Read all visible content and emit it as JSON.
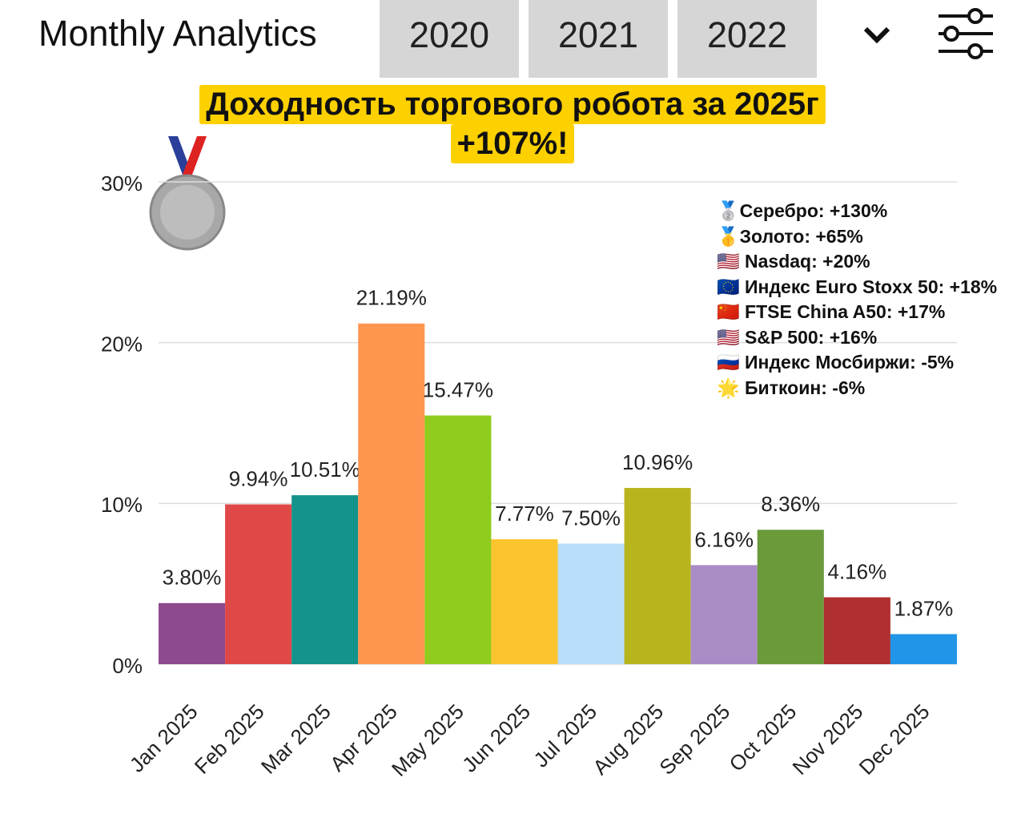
{
  "header": {
    "title": "Monthly Analytics",
    "years": [
      "2020",
      "2021",
      "2022"
    ]
  },
  "chart_data": {
    "type": "bar",
    "title": "Доходность торгового робота за 2025г",
    "subtitle": "+107%!",
    "categories": [
      "Jan 2025",
      "Feb 2025",
      "Mar 2025",
      "Apr 2025",
      "May 2025",
      "Jun 2025",
      "Jul 2025",
      "Aug 2025",
      "Sep 2025",
      "Oct 2025",
      "Nov 2025",
      "Dec 2025"
    ],
    "values": [
      3.8,
      9.94,
      10.51,
      21.19,
      15.47,
      7.77,
      7.5,
      10.96,
      6.16,
      8.36,
      4.16,
      1.87
    ],
    "value_labels": [
      "3.80%",
      "9.94%",
      "10.51%",
      "21.19%",
      "15.47%",
      "7.77%",
      "7.50%",
      "10.96%",
      "6.16%",
      "8.36%",
      "4.16%",
      "1.87%"
    ],
    "colors": [
      "#8e4a8e",
      "#e04848",
      "#14938c",
      "#ff9650",
      "#8fcc1e",
      "#fcc42e",
      "#b8defa",
      "#b8b41e",
      "#a98bc6",
      "#6a9a3a",
      "#b02f30",
      "#2196e8"
    ],
    "ylim": [
      0,
      30
    ],
    "yticks": [
      {
        "value": 0,
        "label": "0%"
      },
      {
        "value": 10,
        "label": "10%"
      },
      {
        "value": 20,
        "label": "20%"
      },
      {
        "value": 30,
        "label": "30%"
      }
    ],
    "grid": true,
    "annotations": [
      "🥈Серебро: +130%",
      "🥇Золото: +65%",
      "🇺🇸 Nasdaq: +20%",
      "🇪🇺 Индекс Euro Stoxx 50: +18%",
      "🇨🇳 FTSE China A50: +17%",
      "🇺🇸 S&P 500: +16%",
      "🇷🇺 Индекс Мосбиржи: -5%",
      "🌟 Биткоин: -6%"
    ]
  }
}
